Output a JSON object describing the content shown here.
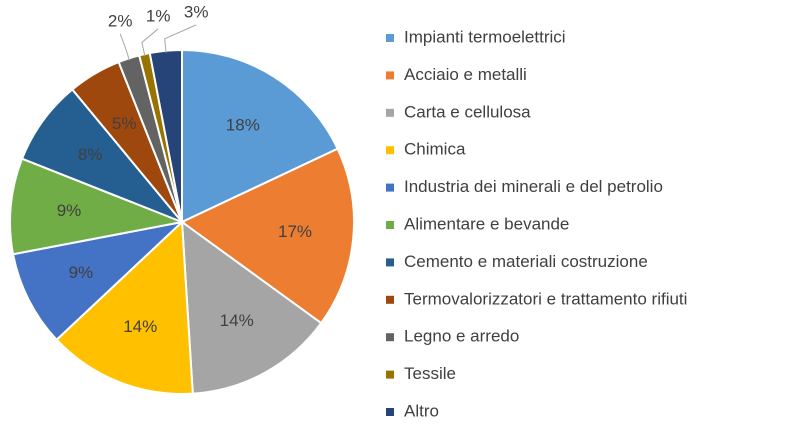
{
  "chart_data": {
    "type": "pie",
    "categories": [
      "Impianti termoelettrici",
      "Acciaio e metalli",
      "Carta e cellulosa",
      "Chimica",
      "Industria dei minerali e del petrolio",
      "Alimentare e bevande",
      "Cemento e materiali costruzione",
      "Termovalorizzatori e trattamento rifiuti",
      "Legno e arredo",
      "Tessile",
      "Altro"
    ],
    "values": [
      18,
      17,
      14,
      14,
      9,
      9,
      8,
      5,
      2,
      1,
      3
    ],
    "value_labels": [
      "18%",
      "17%",
      "14%",
      "14%",
      "9%",
      "9%",
      "8%",
      "5%",
      "2%",
      "1%",
      "3%"
    ],
    "colors": [
      "#5b9bd5",
      "#ed7d31",
      "#a5a5a5",
      "#ffc000",
      "#4472c4",
      "#70ad47",
      "#255e91",
      "#9e480e",
      "#636363",
      "#997300",
      "#264478"
    ],
    "legend": "right"
  }
}
